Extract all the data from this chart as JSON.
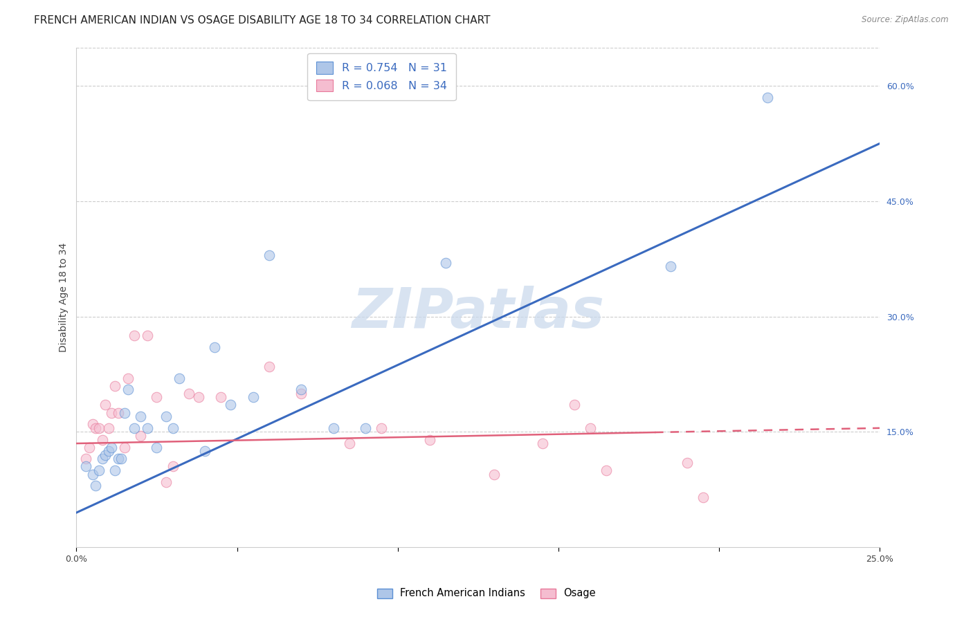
{
  "title": "FRENCH AMERICAN INDIAN VS OSAGE DISABILITY AGE 18 TO 34 CORRELATION CHART",
  "source": "Source: ZipAtlas.com",
  "ylabel": "Disability Age 18 to 34",
  "x_min": 0.0,
  "x_max": 0.25,
  "y_min": 0.0,
  "y_max": 0.65,
  "x_ticks": [
    0.0,
    0.05,
    0.1,
    0.15,
    0.2,
    0.25
  ],
  "y_ticks_right": [
    0.15,
    0.3,
    0.45,
    0.6
  ],
  "y_tick_labels_right": [
    "15.0%",
    "30.0%",
    "45.0%",
    "60.0%"
  ],
  "legend_r1": "R = 0.754",
  "legend_n1": "N = 31",
  "legend_r2": "R = 0.068",
  "legend_n2": "N = 34",
  "blue_color": "#aec6e8",
  "blue_edge_color": "#5b8fd4",
  "blue_line_color": "#3a6abf",
  "pink_color": "#f5bdd0",
  "pink_edge_color": "#e8789a",
  "pink_line_color": "#e0607a",
  "watermark": "ZIPatlas",
  "blue_scatter_x": [
    0.003,
    0.005,
    0.006,
    0.007,
    0.008,
    0.009,
    0.01,
    0.011,
    0.012,
    0.013,
    0.014,
    0.015,
    0.016,
    0.018,
    0.02,
    0.022,
    0.025,
    0.028,
    0.03,
    0.032,
    0.04,
    0.043,
    0.048,
    0.055,
    0.06,
    0.07,
    0.08,
    0.09,
    0.115,
    0.185,
    0.215
  ],
  "blue_scatter_y": [
    0.105,
    0.095,
    0.08,
    0.1,
    0.115,
    0.12,
    0.125,
    0.13,
    0.1,
    0.115,
    0.115,
    0.175,
    0.205,
    0.155,
    0.17,
    0.155,
    0.13,
    0.17,
    0.155,
    0.22,
    0.125,
    0.26,
    0.185,
    0.195,
    0.38,
    0.205,
    0.155,
    0.155,
    0.37,
    0.365,
    0.585
  ],
  "pink_scatter_x": [
    0.003,
    0.004,
    0.005,
    0.006,
    0.007,
    0.008,
    0.009,
    0.01,
    0.011,
    0.012,
    0.013,
    0.015,
    0.016,
    0.018,
    0.02,
    0.022,
    0.025,
    0.028,
    0.03,
    0.035,
    0.038,
    0.045,
    0.06,
    0.07,
    0.085,
    0.095,
    0.11,
    0.13,
    0.145,
    0.155,
    0.16,
    0.165,
    0.19,
    0.195
  ],
  "pink_scatter_y": [
    0.115,
    0.13,
    0.16,
    0.155,
    0.155,
    0.14,
    0.185,
    0.155,
    0.175,
    0.21,
    0.175,
    0.13,
    0.22,
    0.275,
    0.145,
    0.275,
    0.195,
    0.085,
    0.105,
    0.2,
    0.195,
    0.195,
    0.235,
    0.2,
    0.135,
    0.155,
    0.14,
    0.095,
    0.135,
    0.185,
    0.155,
    0.1,
    0.11,
    0.065
  ],
  "blue_line_x0": 0.0,
  "blue_line_y0": 0.045,
  "blue_line_x1": 0.25,
  "blue_line_y1": 0.525,
  "pink_line_x0": 0.0,
  "pink_line_y0": 0.135,
  "pink_line_x1": 0.25,
  "pink_line_y1": 0.155,
  "grid_color": "#cccccc",
  "background_color": "#ffffff",
  "title_fontsize": 11,
  "axis_fontsize": 10,
  "tick_fontsize": 9,
  "scatter_size": 110,
  "scatter_alpha": 0.6
}
